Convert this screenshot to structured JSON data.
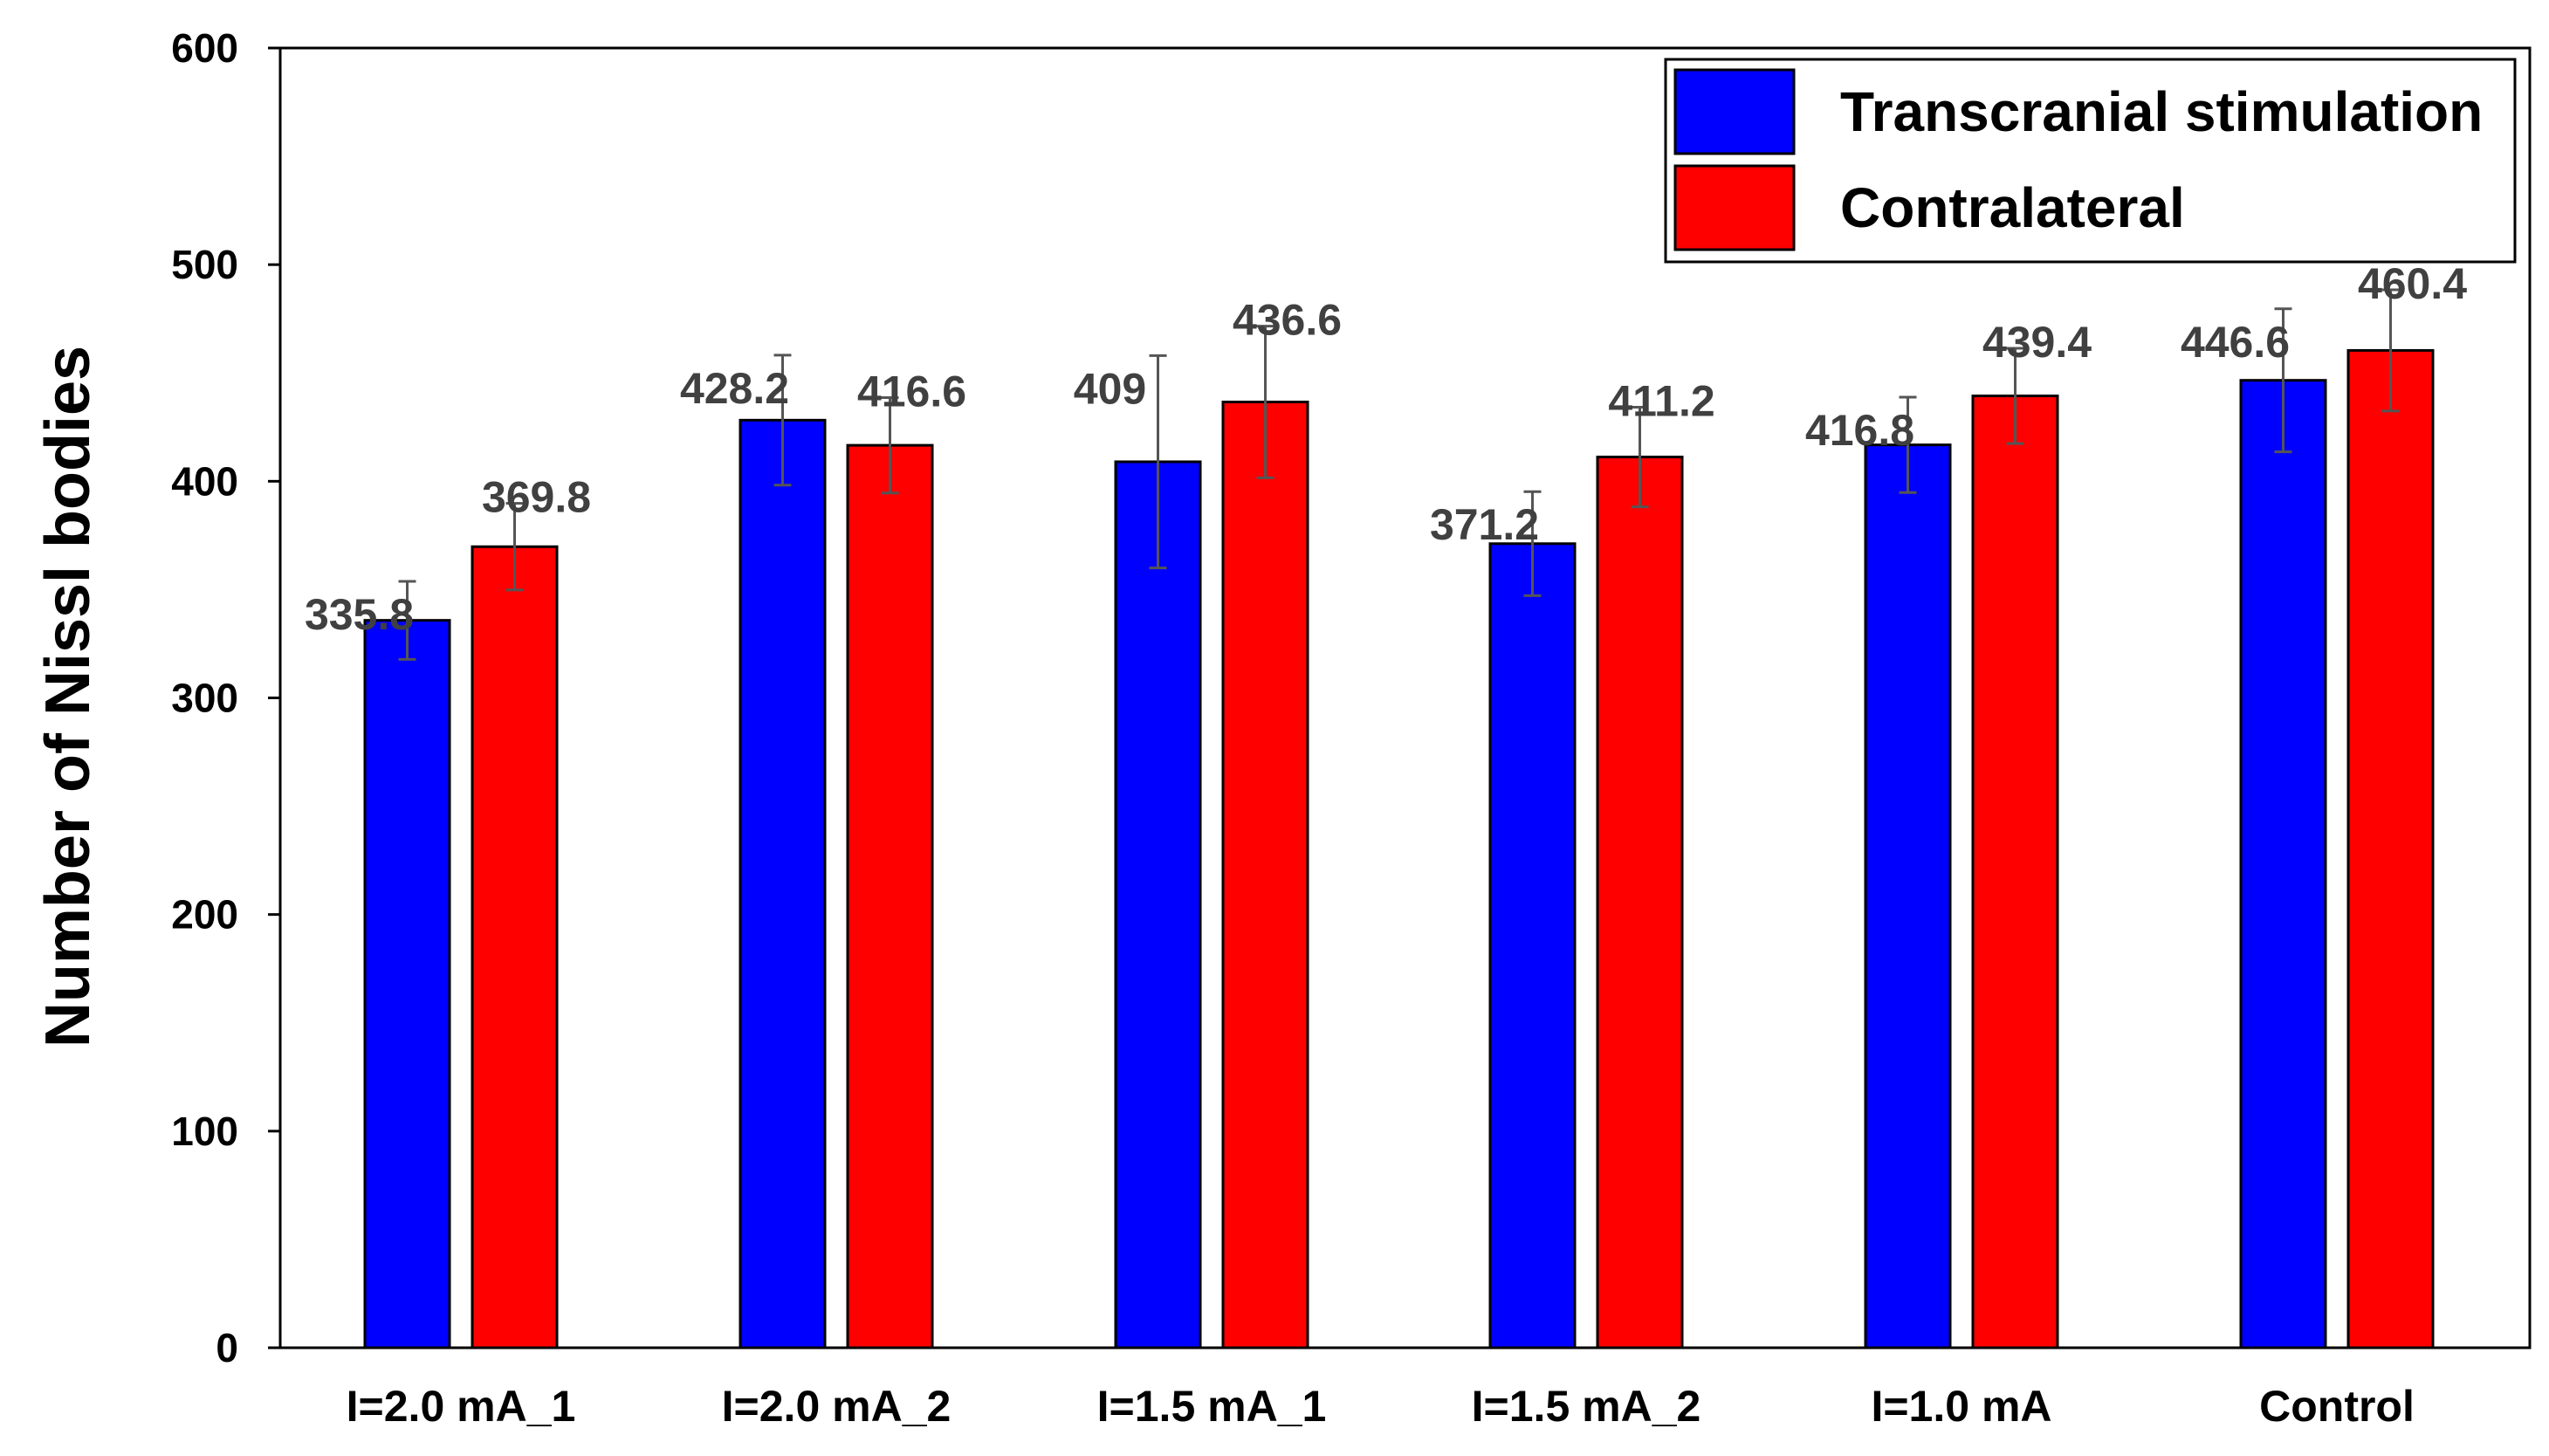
{
  "chart_data": {
    "type": "bar",
    "title": "",
    "xlabel": "",
    "ylabel": "Number of Nissl bodies",
    "ylim": [
      0,
      600
    ],
    "yticks": [
      "0",
      "100",
      "200",
      "300",
      "400",
      "500",
      "600"
    ],
    "categories": [
      "I=2.0 mA_1",
      "I=2.0 mA_2",
      "I=1.5 mA_1",
      "I=1.5 mA_2",
      "I=1.0 mA",
      "Control"
    ],
    "legend_position": "top-right",
    "grid": false,
    "series": [
      {
        "name": "Transcranial stimulation",
        "color": "#0000FF",
        "values": [
          335.8,
          428.2,
          409,
          371.2,
          416.8,
          446.6
        ],
        "value_labels": [
          "335.8",
          "428.2",
          "409",
          "371.2",
          "416.8",
          "446.6"
        ],
        "error": [
          18,
          30,
          49,
          24,
          22,
          33
        ]
      },
      {
        "name": "Contralateral",
        "color": "#FF0000",
        "values": [
          369.8,
          416.6,
          436.6,
          411.2,
          439.4,
          460.4
        ],
        "value_labels": [
          "369.8",
          "416.6",
          "436.6",
          "411.2",
          "439.4",
          "460.4"
        ],
        "error": [
          20,
          22,
          35,
          23,
          22,
          28
        ]
      }
    ]
  }
}
